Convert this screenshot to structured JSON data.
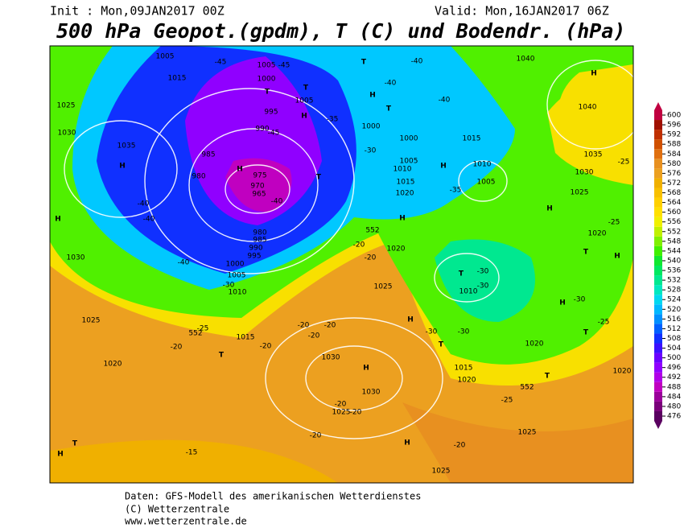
{
  "header": {
    "init": "Init : Mon,09JAN2017 00Z",
    "valid": "Valid: Mon,16JAN2017 06Z",
    "title": "500 hPa Geopot.(gpdm), T (C) und Bodendr. (hPa)"
  },
  "footer": [
    "Daten: GFS-Modell des amerikanischen Wetterdienstes",
    "(C) Wetterzentrale",
    "www.wetterzentrale.de"
  ],
  "colorbar": {
    "values": [
      476,
      480,
      484,
      488,
      492,
      496,
      500,
      504,
      508,
      512,
      516,
      520,
      524,
      528,
      532,
      536,
      540,
      544,
      548,
      552,
      556,
      560,
      564,
      568,
      572,
      576,
      580,
      584,
      588,
      592,
      596,
      600
    ],
    "colors": [
      "#5a0060",
      "#7a007a",
      "#9a009a",
      "#c000c0",
      "#b000e8",
      "#9000ff",
      "#6a00ff",
      "#3a10ff",
      "#1030ff",
      "#0060ff",
      "#0090ff",
      "#00b8ff",
      "#00d8f0",
      "#00e8c0",
      "#00e890",
      "#00e860",
      "#10e830",
      "#40f000",
      "#80f000",
      "#c0f000",
      "#f0f000",
      "#ffe000",
      "#ffd000",
      "#f8c000",
      "#f0b000",
      "#eca020",
      "#e89020",
      "#e07010",
      "#d05000",
      "#c03000",
      "#a01000",
      "#c00040"
    ]
  },
  "map_labels": [
    "1005",
    "1015",
    "1025",
    "1030",
    "1035",
    "H",
    "H",
    "1030",
    "-40",
    "-40",
    "-40",
    "-45",
    "1005",
    "-45",
    "1000",
    "T",
    "T",
    "995",
    "H",
    "1005",
    "990",
    "-45",
    "985",
    "H",
    "980",
    "975",
    "970",
    "965",
    "-40",
    "T",
    "980",
    "985",
    "990",
    "995",
    "1000",
    "1005",
    "-30",
    "1010",
    "T",
    "-40",
    "-40",
    "H",
    "T",
    "-40",
    "-35",
    "1000",
    "1000",
    "-30",
    "1015",
    "1005",
    "1010",
    "1015",
    "H",
    "1010",
    "1005",
    "-35",
    "1040",
    "H",
    "1040",
    "1035",
    "-25",
    "1030",
    "1025",
    "H",
    "-25",
    "1020",
    "T",
    "H",
    "1020",
    "H",
    "552",
    "1020",
    "-20",
    "-20",
    "1025",
    "T",
    "-30",
    "-30",
    "1010",
    "H",
    "-30",
    "T",
    "-25",
    "1020",
    "H",
    "-30",
    "-30",
    "T",
    "1015",
    "1020",
    "T",
    "552",
    "-25",
    "1020",
    "1025",
    "1025",
    "-25",
    "1015",
    "-20",
    "T",
    "-20",
    "-20",
    "-20",
    "-20",
    "1030",
    "H",
    "1030",
    "-20",
    "1025",
    "-20",
    "1020",
    "-20",
    "H",
    "-20",
    "1025",
    "-15",
    "T",
    "H",
    "552"
  ]
}
